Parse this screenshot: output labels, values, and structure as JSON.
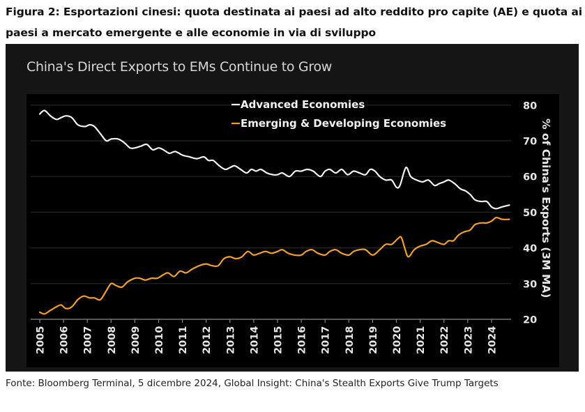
{
  "figure": {
    "caption": "Figura 2: Esportazioni cinesi: quota destinata ai paesi ad alto reddito pro capite (AE) e quota ai paesi a mercato emergente e alle economie in via di sviluppo",
    "source": "Fonte: Bloomberg Terminal, 5 dicembre 2024, Global Insight: China's Stealth Exports Give Trump Targets"
  },
  "colors": {
    "advanced": "#f2f2f2",
    "emerging": "#f0a030",
    "frame_bg": "#151515",
    "plot_bg": "#000000",
    "grid": "#262626"
  },
  "chart_data": {
    "type": "line",
    "title": "China's Direct Exports to EMs Continue to Grow",
    "xlabel": "",
    "ylabel": "% of China's Exports (3M MA)",
    "y_axis_side": "right",
    "ylim": [
      20,
      80
    ],
    "yticks": [
      20,
      30,
      40,
      50,
      60,
      70,
      80
    ],
    "xlim": [
      2005,
      2024.85
    ],
    "xticks": [
      "2005",
      "2006",
      "2007",
      "2008",
      "2009",
      "2010",
      "2011",
      "2012",
      "2013",
      "2014",
      "2015",
      "2016",
      "2017",
      "2018",
      "2019",
      "2020",
      "2021",
      "2022",
      "2023",
      "2024"
    ],
    "grid": true,
    "legend_position": "top-center",
    "series": [
      {
        "name": "Advanced Economies",
        "color_key": "advanced",
        "x": [
          2005.0,
          2005.2,
          2005.45,
          2005.7,
          2005.9,
          2006.1,
          2006.35,
          2006.6,
          2006.9,
          2007.1,
          2007.3,
          2007.55,
          2007.8,
          2008.0,
          2008.3,
          2008.55,
          2008.8,
          2009.0,
          2009.25,
          2009.5,
          2009.75,
          2010.0,
          2010.2,
          2010.45,
          2010.7,
          2011.0,
          2011.3,
          2011.6,
          2011.9,
          2012.1,
          2012.3,
          2012.55,
          2012.8,
          2013.0,
          2013.2,
          2013.45,
          2013.7,
          2013.9,
          2014.1,
          2014.3,
          2014.55,
          2014.8,
          2015.0,
          2015.2,
          2015.5,
          2015.75,
          2016.0,
          2016.25,
          2016.5,
          2016.8,
          2017.0,
          2017.2,
          2017.45,
          2017.7,
          2017.95,
          2018.2,
          2018.45,
          2018.7,
          2018.9,
          2019.1,
          2019.3,
          2019.55,
          2019.8,
          2020.0,
          2020.15,
          2020.4,
          2020.6,
          2020.85,
          2021.1,
          2021.35,
          2021.6,
          2021.8,
          2022.0,
          2022.2,
          2022.45,
          2022.7,
          2022.9,
          2023.1,
          2023.3,
          2023.55,
          2023.8,
          2024.0,
          2024.2,
          2024.45,
          2024.75
        ],
        "values": [
          77.5,
          78.5,
          77.0,
          76.0,
          76.5,
          77.0,
          76.5,
          74.5,
          74.0,
          74.5,
          74.0,
          72.0,
          70.0,
          70.5,
          70.5,
          69.5,
          68.0,
          68.0,
          68.5,
          69.0,
          67.5,
          68.0,
          67.5,
          66.5,
          67.0,
          66.0,
          65.5,
          65.0,
          65.5,
          64.5,
          64.5,
          63.0,
          62.0,
          62.5,
          63.0,
          62.0,
          61.0,
          62.0,
          61.5,
          62.0,
          61.0,
          60.5,
          60.5,
          61.0,
          60.0,
          61.5,
          61.5,
          62.0,
          61.5,
          60.0,
          61.5,
          62.0,
          61.0,
          62.0,
          60.5,
          61.5,
          61.0,
          60.5,
          62.0,
          61.5,
          60.0,
          59.0,
          59.0,
          57.0,
          57.5,
          62.5,
          60.0,
          59.0,
          58.5,
          59.0,
          57.5,
          58.0,
          58.5,
          59.0,
          58.0,
          56.5,
          56.0,
          55.0,
          53.5,
          53.0,
          53.0,
          51.5,
          51.0,
          51.5,
          52.0
        ]
      },
      {
        "name": "Emerging & Developing Economies",
        "color_key": "emerging",
        "x": [
          2005.0,
          2005.2,
          2005.45,
          2005.7,
          2005.9,
          2006.1,
          2006.35,
          2006.6,
          2006.85,
          2007.1,
          2007.3,
          2007.55,
          2007.8,
          2008.0,
          2008.2,
          2008.45,
          2008.7,
          2009.0,
          2009.2,
          2009.45,
          2009.7,
          2009.95,
          2010.2,
          2010.4,
          2010.65,
          2010.9,
          2011.15,
          2011.4,
          2011.7,
          2012.0,
          2012.25,
          2012.5,
          2012.75,
          2013.0,
          2013.25,
          2013.5,
          2013.75,
          2014.0,
          2014.25,
          2014.5,
          2014.75,
          2015.0,
          2015.2,
          2015.45,
          2015.7,
          2016.0,
          2016.2,
          2016.45,
          2016.7,
          2017.0,
          2017.2,
          2017.45,
          2017.7,
          2018.0,
          2018.2,
          2018.45,
          2018.7,
          2019.0,
          2019.3,
          2019.55,
          2019.8,
          2020.05,
          2020.2,
          2020.35,
          2020.5,
          2020.75,
          2021.0,
          2021.25,
          2021.5,
          2021.75,
          2022.0,
          2022.2,
          2022.4,
          2022.6,
          2022.85,
          2023.1,
          2023.3,
          2023.55,
          2023.8,
          2024.0,
          2024.2,
          2024.45,
          2024.75
        ],
        "values": [
          22.0,
          21.5,
          22.5,
          23.5,
          24.0,
          23.0,
          23.5,
          25.5,
          26.5,
          26.0,
          26.0,
          25.5,
          28.0,
          30.0,
          29.5,
          29.0,
          30.5,
          31.5,
          31.5,
          31.0,
          31.5,
          31.5,
          32.5,
          33.0,
          32.0,
          33.5,
          33.0,
          34.0,
          35.0,
          35.5,
          35.0,
          35.0,
          37.0,
          37.5,
          37.0,
          37.5,
          39.0,
          38.0,
          38.5,
          39.0,
          38.5,
          39.0,
          39.5,
          38.5,
          38.0,
          38.0,
          39.0,
          39.5,
          38.5,
          38.0,
          39.0,
          39.5,
          38.5,
          38.0,
          39.0,
          39.5,
          39.5,
          38.0,
          39.5,
          41.0,
          41.0,
          42.5,
          43.0,
          40.0,
          37.5,
          39.5,
          40.5,
          41.0,
          42.0,
          41.5,
          41.0,
          42.0,
          42.0,
          43.5,
          44.5,
          45.0,
          46.5,
          47.0,
          47.0,
          47.5,
          48.5,
          48.0,
          48.0
        ]
      }
    ]
  }
}
